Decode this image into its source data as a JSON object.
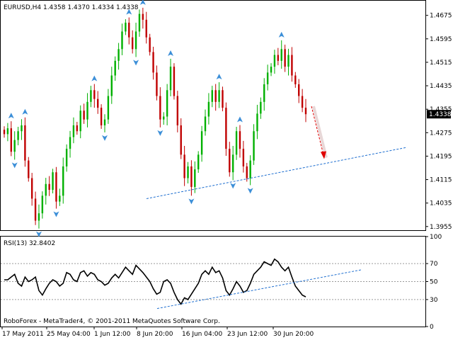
{
  "window": {
    "symbol_header": "EURUSD,H4  1.4358 1.4370 1.4334 1.4338",
    "watermark": "RoboForex - MetaTrader4, © 2001-2011 MetaQuotes Software Corp."
  },
  "colors": {
    "background": "#ffffff",
    "bull_candle": "#00b000",
    "bear_candle": "#c00000",
    "fractal_marker": "#3c8fd8",
    "trendline": "#1f6fd0",
    "forecast_arrow": "#e00000",
    "rsi_line": "#000000",
    "price_tag_bg": "#000000"
  },
  "chart_data": [
    {
      "type": "candlestick",
      "symbol": "EURUSD",
      "timeframe": "H4",
      "ohlc_header": {
        "open": 1.4358,
        "high": 1.437,
        "low": 1.4334,
        "close": 1.4338
      },
      "current_price": "1.4338",
      "price_axis_ticks": [
        "1.4675",
        "1.4595",
        "1.4515",
        "1.4435",
        "1.4355",
        "1.4275",
        "1.4195",
        "1.4115",
        "1.4035",
        "1.3955"
      ],
      "ylim": [
        1.394,
        1.4725
      ],
      "time_axis_ticks": [
        "17 May 2011",
        "25 May 04:00",
        "1 Jun 12:00",
        "8 Jun 20:00",
        "16 Jun 04:00",
        "23 Jun 12:00",
        "30 Jun 20:00"
      ],
      "approx_close_path": [
        1.427,
        1.429,
        1.421,
        1.425,
        1.428,
        1.43,
        1.418,
        1.412,
        1.405,
        1.3975,
        1.4,
        1.406,
        1.41,
        1.408,
        1.414,
        1.404,
        1.406,
        1.416,
        1.422,
        1.426,
        1.43,
        1.428,
        1.435,
        1.432,
        1.438,
        1.442,
        1.439,
        1.436,
        1.43,
        1.432,
        1.44,
        1.447,
        1.452,
        1.456,
        1.462,
        1.465,
        1.46,
        1.456,
        1.462,
        1.468,
        1.466,
        1.46,
        1.455,
        1.448,
        1.44,
        1.432,
        1.433,
        1.442,
        1.45,
        1.44,
        1.43,
        1.42,
        1.412,
        1.416,
        1.409,
        1.415,
        1.42,
        1.428,
        1.433,
        1.438,
        1.442,
        1.438,
        1.442,
        1.436,
        1.422,
        1.414,
        1.42,
        1.428,
        1.422,
        1.416,
        1.412,
        1.418,
        1.428,
        1.434,
        1.438,
        1.444,
        1.448,
        1.45,
        1.454,
        1.452,
        1.456,
        1.45,
        1.454,
        1.447,
        1.444,
        1.44,
        1.436,
        1.4338
      ],
      "trendline": {
        "from": {
          "date": "10 Jun 2011",
          "price": 1.405
        },
        "to": {
          "date": "12 Jul 2011",
          "price": 1.4225
        }
      },
      "forecast_arrow": {
        "from_price": 1.4365,
        "to_price": 1.419
      }
    },
    {
      "type": "line",
      "name": "RSI(13)",
      "header": "RSI(13) 32.8402",
      "axis_ticks": [
        "100",
        "70",
        "50",
        "30",
        "0"
      ],
      "ylim": [
        0,
        100
      ],
      "levels": [
        70,
        50,
        30
      ],
      "approx_values": [
        52,
        52,
        55,
        58,
        48,
        45,
        55,
        50,
        52,
        55,
        40,
        35,
        42,
        48,
        52,
        50,
        45,
        48,
        60,
        58,
        52,
        50,
        60,
        62,
        56,
        60,
        58,
        52,
        50,
        46,
        48,
        54,
        58,
        54,
        60,
        66,
        62,
        58,
        68,
        64,
        60,
        55,
        50,
        42,
        36,
        38,
        50,
        52,
        48,
        38,
        30,
        25,
        32,
        30,
        36,
        42,
        48,
        58,
        62,
        58,
        66,
        60,
        62,
        54,
        40,
        35,
        42,
        50,
        45,
        38,
        40,
        48,
        58,
        62,
        66,
        72,
        70,
        68,
        75,
        72,
        66,
        62,
        66,
        55,
        45,
        40,
        35,
        33
      ],
      "trendline": {
        "from": {
          "date": "10 Jun 2011",
          "value": 20
        },
        "to": {
          "date": "12 Jul 2011",
          "value": 63
        }
      }
    }
  ]
}
